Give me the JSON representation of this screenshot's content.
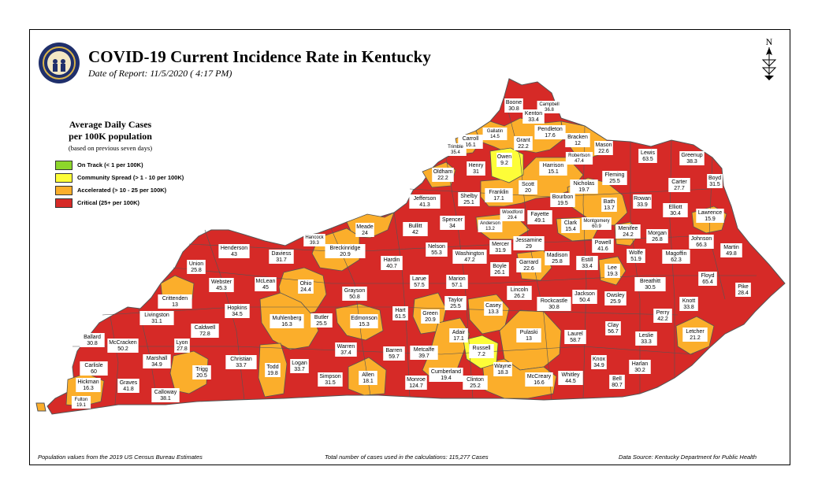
{
  "title": "COVID-19 Current Incidence Rate in Kentucky",
  "date_of_report": "Date of Report: 11/5/2020 ( 4:17 PM)",
  "north_label": "N",
  "legend": {
    "title_line1": "Average Daily Cases",
    "title_line2": "per 100K population",
    "note": "(based on previous seven days)",
    "items": [
      {
        "label": "On Track (< 1 per 100K)",
        "color": "#8dd62b"
      },
      {
        "label": "Community Spread (> 1 - 10 per 100K)",
        "color": "#fdfd38"
      },
      {
        "label": "Accelerated (> 10 - 25 per 100K)",
        "color": "#fbae2b"
      },
      {
        "label": "Critical (25+ per 100K)",
        "color": "#d62a27"
      }
    ]
  },
  "footer": {
    "left": "Population values from the 2019 US Census Bureau Estimates",
    "center": "Total number of cases used in the calculations: 115,277 Cases",
    "right": "Data Source: Kentucky Department for Public Health"
  },
  "colors": {
    "critical": "#d62a27",
    "accelerated": "#fbae2b",
    "community": "#fdfd38",
    "on_track": "#8dd62b",
    "border": "#555555"
  },
  "counties": [
    {
      "name": "Boone",
      "value": "30.8",
      "level": "critical"
    },
    {
      "name": "Campbell",
      "value": "36.8",
      "level": "critical"
    },
    {
      "name": "Kenton",
      "value": "33.4",
      "level": "critical"
    },
    {
      "name": "Gallatin",
      "value": "14.5",
      "level": "accelerated"
    },
    {
      "name": "Pendleton",
      "value": "17.6",
      "level": "accelerated"
    },
    {
      "name": "Carroll",
      "value": "16.1",
      "level": "accelerated"
    },
    {
      "name": "Grant",
      "value": "22.2",
      "level": "accelerated"
    },
    {
      "name": "Bracken",
      "value": "12",
      "level": "accelerated"
    },
    {
      "name": "Mason",
      "value": "22.6",
      "level": "accelerated"
    },
    {
      "name": "Trimble",
      "value": "35.4",
      "level": "critical"
    },
    {
      "name": "Robertson",
      "value": "47.4",
      "level": "critical"
    },
    {
      "name": "Owen",
      "value": "9.2",
      "level": "community"
    },
    {
      "name": "Henry",
      "value": "31",
      "level": "critical"
    },
    {
      "name": "Oldham",
      "value": "22.2",
      "level": "accelerated"
    },
    {
      "name": "Harrison",
      "value": "15.1",
      "level": "accelerated"
    },
    {
      "name": "Fleming",
      "value": "25.5",
      "level": "critical"
    },
    {
      "name": "Lewis",
      "value": "63.5",
      "level": "critical"
    },
    {
      "name": "Greenup",
      "value": "38.3",
      "level": "critical"
    },
    {
      "name": "Boyd",
      "value": "31.5",
      "level": "critical"
    },
    {
      "name": "Carter",
      "value": "27.7",
      "level": "critical"
    },
    {
      "name": "Scott",
      "value": "20",
      "level": "accelerated"
    },
    {
      "name": "Nicholas",
      "value": "19.7",
      "level": "accelerated"
    },
    {
      "name": "Franklin",
      "value": "17.1",
      "level": "accelerated"
    },
    {
      "name": "Shelby",
      "value": "25.1",
      "level": "critical"
    },
    {
      "name": "Jefferson",
      "value": "41.3",
      "level": "critical"
    },
    {
      "name": "Bourbon",
      "value": "19.5",
      "level": "accelerated"
    },
    {
      "name": "Bath",
      "value": "13.7",
      "level": "accelerated"
    },
    {
      "name": "Rowan",
      "value": "33.9",
      "level": "critical"
    },
    {
      "name": "Elliott",
      "value": "30.4",
      "level": "critical"
    },
    {
      "name": "Lawrence",
      "value": "15.9",
      "level": "accelerated"
    },
    {
      "name": "Woodford",
      "value": "29.4",
      "level": "critical"
    },
    {
      "name": "Spencer",
      "value": "34",
      "level": "critical"
    },
    {
      "name": "Anderson",
      "value": "13.2",
      "level": "accelerated"
    },
    {
      "name": "Fayette",
      "value": "49.1",
      "level": "critical"
    },
    {
      "name": "Clark",
      "value": "15.4",
      "level": "accelerated"
    },
    {
      "name": "Montgomery",
      "value": "60.9",
      "level": "critical"
    },
    {
      "name": "Menifee",
      "value": "24.2",
      "level": "accelerated"
    },
    {
      "name": "Morgan",
      "value": "26.8",
      "level": "critical"
    },
    {
      "name": "Johnson",
      "value": "66.3",
      "level": "critical"
    },
    {
      "name": "Martin",
      "value": "49.8",
      "level": "critical"
    },
    {
      "name": "Bullitt",
      "value": "42",
      "level": "critical"
    },
    {
      "name": "Meade",
      "value": "24",
      "level": "accelerated"
    },
    {
      "name": "Hancock",
      "value": "39.3",
      "level": "critical"
    },
    {
      "name": "Breckinridge",
      "value": "20.9",
      "level": "accelerated"
    },
    {
      "name": "Henderson",
      "value": "43",
      "level": "critical"
    },
    {
      "name": "Daviess",
      "value": "31.7",
      "level": "critical"
    },
    {
      "name": "Nelson",
      "value": "55.3",
      "level": "critical"
    },
    {
      "name": "Mercer",
      "value": "31.9",
      "level": "critical"
    },
    {
      "name": "Jessamine",
      "value": "29",
      "level": "critical"
    },
    {
      "name": "Washington",
      "value": "47.2",
      "level": "critical"
    },
    {
      "name": "Madison",
      "value": "25.8",
      "level": "critical"
    },
    {
      "name": "Garrard",
      "value": "22.6",
      "level": "accelerated"
    },
    {
      "name": "Estill",
      "value": "33.4",
      "level": "critical"
    },
    {
      "name": "Powell",
      "value": "41.6",
      "level": "critical"
    },
    {
      "name": "Wolfe",
      "value": "51.9",
      "level": "critical"
    },
    {
      "name": "Magoffin",
      "value": "62.3",
      "level": "critical"
    },
    {
      "name": "Union",
      "value": "25.8",
      "level": "critical"
    },
    {
      "name": "Hardin",
      "value": "40.7",
      "level": "critical"
    },
    {
      "name": "Boyle",
      "value": "26.1",
      "level": "critical"
    },
    {
      "name": "Lee",
      "value": "19.3",
      "level": "accelerated"
    },
    {
      "name": "Webster",
      "value": "45.3",
      "level": "critical"
    },
    {
      "name": "McLean",
      "value": "45",
      "level": "critical"
    },
    {
      "name": "Ohio",
      "value": "24.4",
      "level": "accelerated"
    },
    {
      "name": "Larue",
      "value": "57.5",
      "level": "critical"
    },
    {
      "name": "Marion",
      "value": "57.1",
      "level": "critical"
    },
    {
      "name": "Lincoln",
      "value": "26.2",
      "level": "critical"
    },
    {
      "name": "Breathitt",
      "value": "30.5",
      "level": "critical"
    },
    {
      "name": "Floyd",
      "value": "65.4",
      "level": "critical"
    },
    {
      "name": "Pike",
      "value": "28.4",
      "level": "critical"
    },
    {
      "name": "Crittenden",
      "value": "13",
      "level": "accelerated"
    },
    {
      "name": "Grayson",
      "value": "50.8",
      "level": "critical"
    },
    {
      "name": "Jackson",
      "value": "50.4",
      "level": "critical"
    },
    {
      "name": "Owsley",
      "value": "25.9",
      "level": "critical"
    },
    {
      "name": "Rockcastle",
      "value": "30.8",
      "level": "critical"
    },
    {
      "name": "Hopkins",
      "value": "34.5",
      "level": "critical"
    },
    {
      "name": "Taylor",
      "value": "25.5",
      "level": "critical"
    },
    {
      "name": "Casey",
      "value": "13.3",
      "level": "accelerated"
    },
    {
      "name": "Knott",
      "value": "33.8",
      "level": "critical"
    },
    {
      "name": "Perry",
      "value": "42.2",
      "level": "critical"
    },
    {
      "name": "Livingston",
      "value": "31.1",
      "level": "critical"
    },
    {
      "name": "Muhlenberg",
      "value": "16.3",
      "level": "accelerated"
    },
    {
      "name": "Butler",
      "value": "25.5",
      "level": "critical"
    },
    {
      "name": "Edmonson",
      "value": "15.3",
      "level": "accelerated"
    },
    {
      "name": "Hart",
      "value": "61.5",
      "level": "critical"
    },
    {
      "name": "Green",
      "value": "20.9",
      "level": "accelerated"
    },
    {
      "name": "Caldwell",
      "value": "72.8",
      "level": "critical"
    },
    {
      "name": "Clay",
      "value": "56.7",
      "level": "critical"
    },
    {
      "name": "Leslie",
      "value": "33.3",
      "level": "critical"
    },
    {
      "name": "Letcher",
      "value": "21.2",
      "level": "accelerated"
    },
    {
      "name": "Ballard",
      "value": "30.8",
      "level": "critical"
    },
    {
      "name": "McCracken",
      "value": "50.2",
      "level": "critical"
    },
    {
      "name": "Lyon",
      "value": "27.8",
      "level": "critical"
    },
    {
      "name": "Adair",
      "value": "17.1",
      "level": "accelerated"
    },
    {
      "name": "Pulaski",
      "value": "13",
      "level": "accelerated"
    },
    {
      "name": "Laurel",
      "value": "58.7",
      "level": "critical"
    },
    {
      "name": "Marshall",
      "value": "34.9",
      "level": "critical"
    },
    {
      "name": "Christian",
      "value": "33.7",
      "level": "critical"
    },
    {
      "name": "Warren",
      "value": "37.4",
      "level": "critical"
    },
    {
      "name": "Barren",
      "value": "59.7",
      "level": "critical"
    },
    {
      "name": "Metcalfe",
      "value": "39.7",
      "level": "critical"
    },
    {
      "name": "Russell",
      "value": "7.2",
      "level": "community"
    },
    {
      "name": "Carlisle",
      "value": "60",
      "level": "critical"
    },
    {
      "name": "Hickman",
      "value": "16.3",
      "level": "accelerated"
    },
    {
      "name": "Graves",
      "value": "41.8",
      "level": "critical"
    },
    {
      "name": "Trigg",
      "value": "20.5",
      "level": "accelerated"
    },
    {
      "name": "Todd",
      "value": "19.8",
      "level": "accelerated"
    },
    {
      "name": "Logan",
      "value": "33.7",
      "level": "critical"
    },
    {
      "name": "Simpson",
      "value": "31.5",
      "level": "critical"
    },
    {
      "name": "Allen",
      "value": "18.1",
      "level": "accelerated"
    },
    {
      "name": "Monroe",
      "value": "124.7",
      "level": "critical"
    },
    {
      "name": "Cumberland",
      "value": "19.4",
      "level": "accelerated"
    },
    {
      "name": "Clinton",
      "value": "25.2",
      "level": "critical"
    },
    {
      "name": "Wayne",
      "value": "18.3",
      "level": "accelerated"
    },
    {
      "name": "McCreary",
      "value": "16.6",
      "level": "accelerated"
    },
    {
      "name": "Whitley",
      "value": "44.5",
      "level": "critical"
    },
    {
      "name": "Knox",
      "value": "34.9",
      "level": "critical"
    },
    {
      "name": "Bell",
      "value": "80.7",
      "level": "critical"
    },
    {
      "name": "Harlan",
      "value": "30.2",
      "level": "critical"
    },
    {
      "name": "Calloway",
      "value": "38.1",
      "level": "critical"
    },
    {
      "name": "Fulton",
      "value": "19.1",
      "level": "accelerated"
    }
  ]
}
